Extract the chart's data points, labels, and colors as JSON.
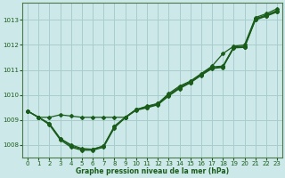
{
  "xlabel": "Graphe pression niveau de la mer (hPa)",
  "xlim": [
    -0.5,
    23.5
  ],
  "ylim": [
    1007.5,
    1013.7
  ],
  "yticks": [
    1008,
    1009,
    1010,
    1011,
    1012,
    1013
  ],
  "xticks": [
    0,
    1,
    2,
    3,
    4,
    5,
    6,
    7,
    8,
    9,
    10,
    11,
    12,
    13,
    14,
    15,
    16,
    17,
    18,
    19,
    20,
    21,
    22,
    23
  ],
  "background_color": "#cce8e8",
  "grid_color": "#a8cccc",
  "line_color": "#1a5c1a",
  "hours": [
    0,
    1,
    2,
    3,
    4,
    5,
    6,
    7,
    8,
    9,
    10,
    11,
    12,
    13,
    14,
    15,
    16,
    17,
    18,
    19,
    20,
    21,
    22,
    23
  ],
  "line_upper": [
    1009.35,
    1009.1,
    1009.1,
    1009.2,
    1009.15,
    1009.1,
    1009.1,
    1009.1,
    1009.1,
    1009.1,
    1009.4,
    1009.55,
    1009.65,
    1010.05,
    1010.35,
    1010.55,
    1010.85,
    1011.15,
    1011.65,
    1011.95,
    1012.0,
    1013.1,
    1013.25,
    1013.45
  ],
  "line_mid1": [
    1009.35,
    1009.1,
    1008.85,
    1008.25,
    1008.0,
    1007.85,
    1007.82,
    1007.95,
    1008.75,
    1009.1,
    1009.42,
    1009.52,
    1009.65,
    1010.0,
    1010.3,
    1010.52,
    1010.82,
    1011.12,
    1011.15,
    1011.92,
    1011.95,
    1013.05,
    1013.2,
    1013.38
  ],
  "line_mid2": [
    1009.35,
    1009.1,
    1008.85,
    1008.25,
    1007.95,
    1007.82,
    1007.82,
    1007.95,
    1008.72,
    1009.1,
    1009.4,
    1009.5,
    1009.62,
    1009.98,
    1010.28,
    1010.5,
    1010.8,
    1011.08,
    1011.12,
    1011.9,
    1011.92,
    1013.02,
    1013.17,
    1013.35
  ],
  "line_lower": [
    1009.35,
    1009.1,
    1008.8,
    1008.2,
    1007.9,
    1007.78,
    1007.78,
    1007.9,
    1008.68,
    1009.08,
    1009.38,
    1009.48,
    1009.6,
    1009.95,
    1010.25,
    1010.48,
    1010.78,
    1011.05,
    1011.1,
    1011.88,
    1011.9,
    1013.0,
    1013.15,
    1013.32
  ]
}
